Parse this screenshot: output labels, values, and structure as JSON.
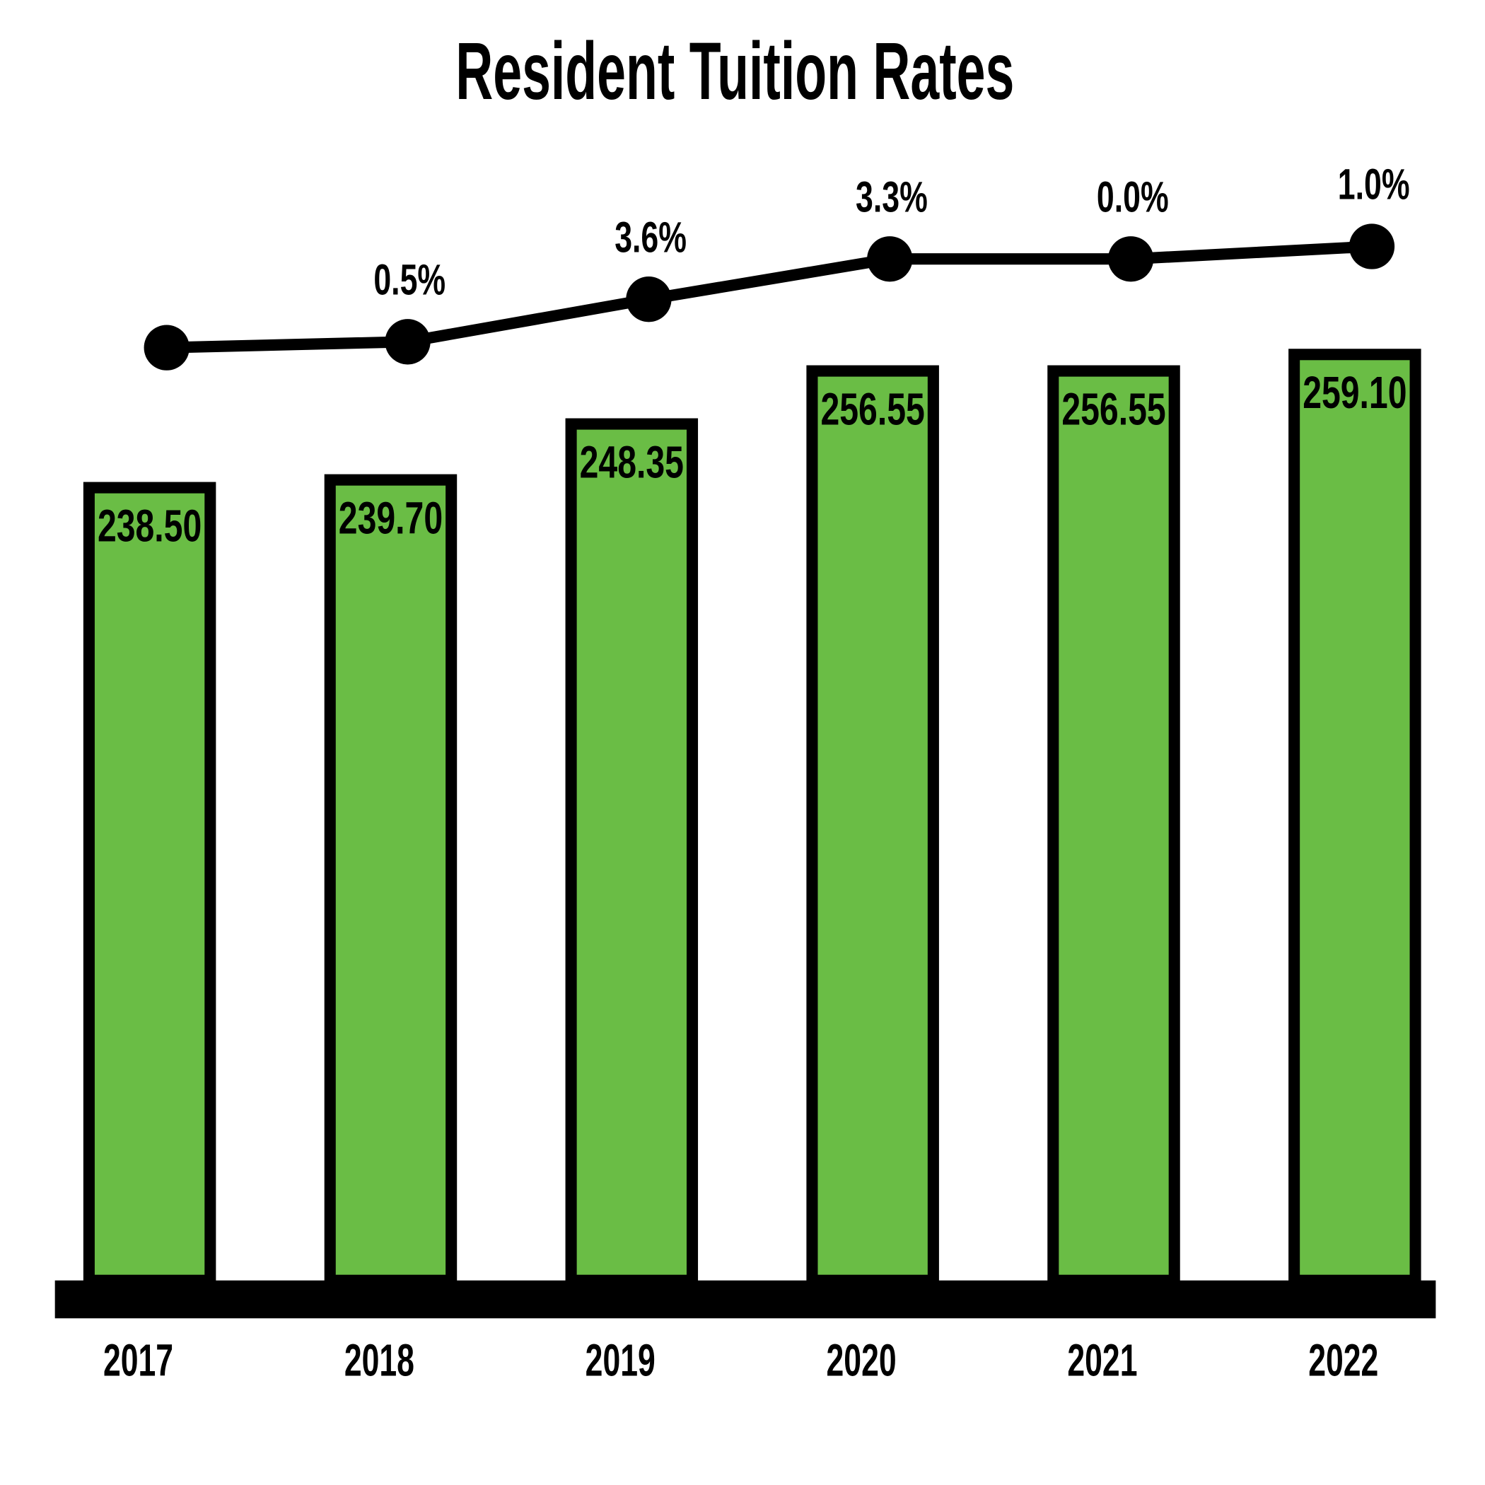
{
  "chart_data": {
    "type": "bar",
    "title": "Resident Tuition Rates",
    "categories": [
      "2017",
      "2018",
      "2019",
      "2020",
      "2021",
      "2022"
    ],
    "series": [
      {
        "values": [
          238.5,
          239.7,
          248.35,
          256.55,
          256.55,
          259.1
        ],
        "value_labels": [
          "238.50",
          "239.70",
          "248.35",
          "256.55",
          "256.55",
          "259.10"
        ],
        "color": "#6abd45"
      }
    ],
    "pct_change": {
      "values": [
        null,
        0.5,
        3.6,
        3.3,
        0.0,
        1.0
      ],
      "value_labels": [
        null,
        "0.5%",
        "3.6%",
        "3.3%",
        "0.0%",
        "1.0%"
      ],
      "color": "#000000"
    },
    "ylim": [
      115,
      265
    ]
  }
}
